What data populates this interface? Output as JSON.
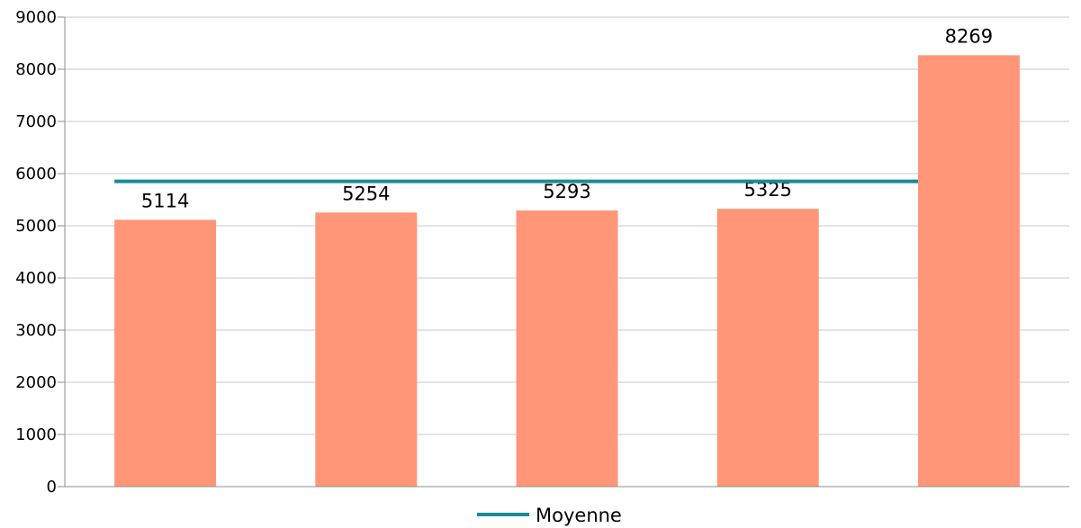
{
  "chart_data": {
    "type": "bar",
    "categories": [
      "",
      "",
      "",
      "",
      ""
    ],
    "values": [
      5114,
      5254,
      5293,
      5325,
      8269
    ],
    "data_labels": [
      "5114",
      "5254",
      "5293",
      "5325",
      "8269"
    ],
    "lines": [
      {
        "name": "Moyenne",
        "value": 5851,
        "color": "#1a8a96"
      }
    ],
    "legend": {
      "position": "bottom",
      "entries": [
        "Moyenne"
      ]
    },
    "ylim": [
      0,
      9000
    ],
    "yticks": [
      0,
      1000,
      2000,
      3000,
      4000,
      5000,
      6000,
      7000,
      8000,
      9000
    ],
    "ytick_labels": [
      "0",
      "1000",
      "2000",
      "3000",
      "4000",
      "5000",
      "6000",
      "7000",
      "8000",
      "9000"
    ],
    "grid": true,
    "title": "",
    "xlabel": "",
    "ylabel": "",
    "colors": {
      "bar": "#ff9677",
      "line": "#1a8a96",
      "grid": "#c8c8c8",
      "axis": "#8c8c8c"
    }
  }
}
